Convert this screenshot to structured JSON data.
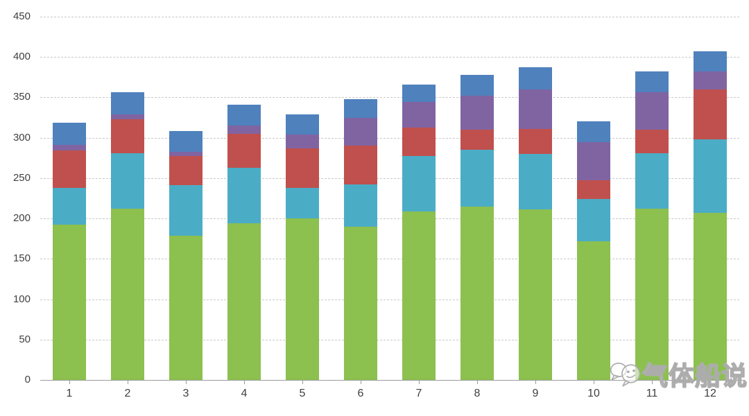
{
  "chart_data": {
    "type": "bar",
    "stacked": true,
    "title": "",
    "xlabel": "",
    "ylabel": "",
    "legend": "none",
    "grid": "horizontal-dashed",
    "ylim": [
      0,
      450
    ],
    "y_tick_step": 50,
    "y_ticks": [
      0,
      50,
      100,
      150,
      200,
      250,
      300,
      350,
      400,
      450
    ],
    "categories": [
      "1",
      "2",
      "3",
      "4",
      "5",
      "6",
      "7",
      "8",
      "9",
      "10",
      "11",
      "12"
    ],
    "series": [
      {
        "name": "series-1-green",
        "color": "#8CC04F",
        "values": [
          192,
          212,
          179,
          194,
          200,
          190,
          209,
          215,
          211,
          172,
          212,
          207
        ]
      },
      {
        "name": "series-2-teal",
        "color": "#4BACC6",
        "values": [
          46,
          69,
          62,
          69,
          38,
          52,
          68,
          70,
          69,
          52,
          69,
          91
        ]
      },
      {
        "name": "series-3-red",
        "color": "#C0504D",
        "values": [
          46,
          42,
          36,
          42,
          49,
          48,
          36,
          25,
          31,
          23,
          29,
          62
        ]
      },
      {
        "name": "series-4-purple",
        "color": "#8064A2",
        "values": [
          7,
          6,
          6,
          10,
          17,
          35,
          31,
          42,
          49,
          48,
          46,
          22
        ]
      },
      {
        "name": "series-5-blue",
        "color": "#4F81BD",
        "values": [
          28,
          27,
          25,
          26,
          25,
          23,
          22,
          26,
          27,
          25,
          26,
          25
        ]
      }
    ],
    "stack_totals": [
      319,
      356,
      308,
      341,
      329,
      348,
      366,
      378,
      387,
      320,
      382,
      407
    ]
  },
  "watermark": {
    "text": "气体船说",
    "icon": "wechat-bubbles-icon"
  },
  "colors": {
    "background": "#FFFFFF",
    "axis_text": "#3F3F3F",
    "gridline": "#C8C8C8",
    "axis_line": "#9B9B9B"
  }
}
